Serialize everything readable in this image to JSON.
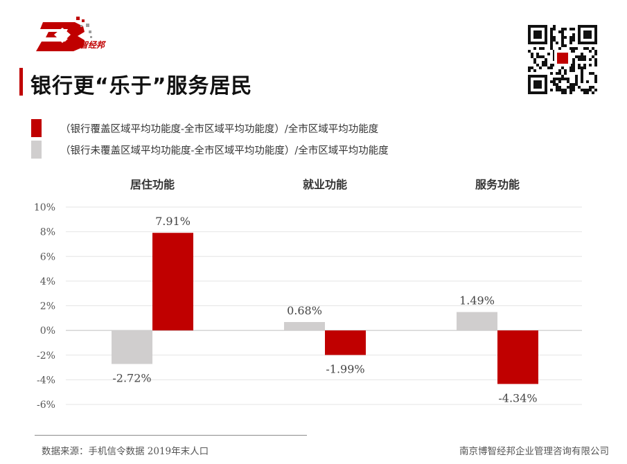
{
  "header": {
    "logo_text": "博智经邦",
    "title": "银行更“乐于”服务居民"
  },
  "colors": {
    "brand_red": "#c00000",
    "bar_gray": "#d0cece"
  },
  "legend": [
    {
      "label": "（银行覆盖区域平均功能度-全市区域平均功能度）/全市区域平均功能度",
      "color": "#c00000"
    },
    {
      "label": "（银行未覆盖区域平均功能度-全市区域平均功能度）/全市区域平均功能度",
      "color": "#d0cece"
    }
  ],
  "chart_data": {
    "type": "bar",
    "categories": [
      "居住功能",
      "就业功能",
      "服务功能"
    ],
    "series": [
      {
        "values": [
          -2.72,
          0.68,
          1.49
        ],
        "color": "#d0cece"
      },
      {
        "values": [
          7.91,
          -1.99,
          -4.34
        ],
        "color": "#c00000"
      }
    ],
    "data_labels": [
      [
        "-2.72%",
        "0.68%",
        "1.49%"
      ],
      [
        "7.91%",
        "-1.99%",
        "-4.34%"
      ]
    ],
    "y_ticks": [
      "10%",
      "8%",
      "6%",
      "4%",
      "2%",
      "0%",
      "-2%",
      "-4%",
      "-6%"
    ],
    "ylim": [
      -6,
      10
    ],
    "grid": true,
    "legend_position": "top-left"
  },
  "footer": {
    "source": "数据来源：手机信令数据 2019年末人口",
    "company": "南京博智经邦企业管理咨询有限公司"
  }
}
